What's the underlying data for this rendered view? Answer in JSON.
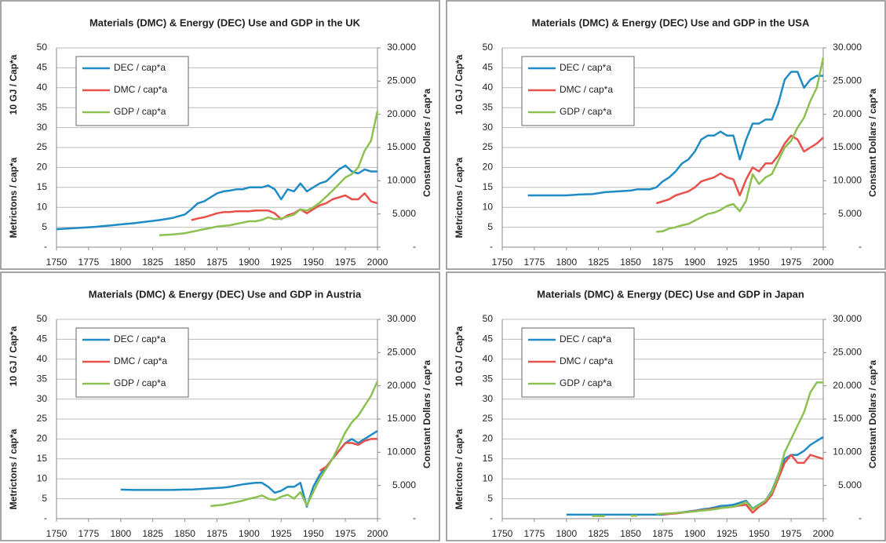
{
  "chart_data": [
    {
      "type": "line",
      "title": "Materials (DMC) & Energy (DEC) Use and GDP in the UK",
      "ylabels": [
        "Metrictons / cap*a",
        "10 GJ / Cap*a"
      ],
      "y2label": "Constant Dollars / cap*a",
      "legend": "top-left",
      "grid": true,
      "xlim": [
        1750,
        2000
      ],
      "xticks": [
        1750,
        1775,
        1800,
        1825,
        1850,
        1875,
        1900,
        1925,
        1950,
        1975,
        2000
      ],
      "ylim": [
        0,
        50
      ],
      "yticks": [
        {
          "value": 0,
          "label": "-"
        },
        5,
        10,
        15,
        20,
        25,
        30,
        35,
        40,
        45,
        50
      ],
      "y2lim": [
        0,
        30000
      ],
      "y2ticks": [
        {
          "value": 0,
          "label": "-"
        },
        {
          "value": 5000,
          "label": "5.000"
        },
        {
          "value": 10000,
          "label": "10.000"
        },
        {
          "value": 15000,
          "label": "15.000"
        },
        {
          "value": 20000,
          "label": "20.000"
        },
        {
          "value": 25000,
          "label": "25.000"
        },
        {
          "value": 30000,
          "label": "30.000"
        }
      ],
      "x": [
        1750,
        1760,
        1770,
        1780,
        1790,
        1800,
        1810,
        1820,
        1830,
        1840,
        1850,
        1855,
        1860,
        1865,
        1870,
        1875,
        1880,
        1885,
        1890,
        1895,
        1900,
        1905,
        1910,
        1915,
        1920,
        1925,
        1930,
        1935,
        1940,
        1945,
        1950,
        1955,
        1960,
        1965,
        1970,
        1975,
        1980,
        1985,
        1990,
        1995,
        2000
      ],
      "series": [
        {
          "name": "DEC / cap*a",
          "color": "#1f8bc4",
          "values": [
            4.5,
            4.7,
            4.9,
            5.1,
            5.4,
            5.7,
            6.0,
            6.4,
            6.8,
            7.3,
            8.2,
            9.5,
            11,
            11.5,
            12.5,
            13.5,
            14,
            14.2,
            14.5,
            14.5,
            15,
            15,
            15,
            15.5,
            14.5,
            12,
            14.5,
            14,
            16,
            14,
            15,
            16,
            16.5,
            18,
            19.5,
            20.5,
            19,
            18.5,
            19.5,
            19,
            19
          ]
        },
        {
          "name": "DMC / cap*a",
          "color": "#e8504a",
          "values": [
            null,
            null,
            null,
            null,
            null,
            null,
            null,
            null,
            null,
            null,
            null,
            6.8,
            7.2,
            7.5,
            8,
            8.5,
            8.8,
            8.8,
            9,
            9,
            9,
            9.2,
            9.2,
            9.2,
            8.5,
            7,
            8,
            8.5,
            9.5,
            8.5,
            9.5,
            10.5,
            11,
            12,
            12.5,
            13,
            12,
            12,
            13.5,
            11.5,
            11
          ]
        },
        {
          "name": "GDP / cap*a",
          "color": "#8cc152",
          "axis": "y2",
          "values": [
            null,
            null,
            null,
            null,
            null,
            null,
            null,
            null,
            1800,
            1900,
            2100,
            2300,
            2500,
            2700,
            2900,
            3100,
            3200,
            3300,
            3500,
            3700,
            3900,
            3900,
            4100,
            4500,
            4200,
            4300,
            4600,
            4900,
            5700,
            5500,
            6000,
            6700,
            7600,
            8500,
            9500,
            10500,
            11000,
            12000,
            14500,
            16000,
            20500
          ]
        }
      ]
    },
    {
      "type": "line",
      "title": "Materials (DMC) & Energy (DEC) Use and GDP in the USA",
      "ylabels": [
        "Metrictons / cap*a",
        "10 GJ / Cap*a"
      ],
      "y2label": "Constant Dollars / cap*a",
      "legend": "top-left",
      "grid": true,
      "xlim": [
        1750,
        2000
      ],
      "xticks": [
        1750,
        1775,
        1800,
        1825,
        1850,
        1875,
        1900,
        1925,
        1950,
        1975,
        2000
      ],
      "ylim": [
        0,
        50
      ],
      "yticks": [
        {
          "value": 0,
          "label": "-"
        },
        5,
        10,
        15,
        20,
        25,
        30,
        35,
        40,
        45,
        50
      ],
      "y2lim": [
        0,
        30000
      ],
      "y2ticks": [
        {
          "value": 0,
          "label": "-"
        },
        {
          "value": 5000,
          "label": "5.000"
        },
        {
          "value": 10000,
          "label": "10.000"
        },
        {
          "value": 15000,
          "label": "15.000"
        },
        {
          "value": 20000,
          "label": "20.000"
        },
        {
          "value": 25000,
          "label": "25.000"
        },
        {
          "value": 30000,
          "label": "30.000"
        }
      ],
      "x": [
        1750,
        1760,
        1770,
        1780,
        1790,
        1800,
        1810,
        1820,
        1830,
        1840,
        1850,
        1855,
        1860,
        1865,
        1870,
        1875,
        1880,
        1885,
        1890,
        1895,
        1900,
        1905,
        1910,
        1915,
        1920,
        1925,
        1930,
        1935,
        1940,
        1945,
        1950,
        1955,
        1960,
        1965,
        1970,
        1975,
        1980,
        1985,
        1990,
        1995,
        2000
      ],
      "series": [
        {
          "name": "DEC / cap*a",
          "color": "#1f8bc4",
          "values": [
            null,
            null,
            13,
            13,
            13,
            13,
            13.2,
            13.3,
            13.8,
            14,
            14.2,
            14.5,
            14.5,
            14.5,
            15,
            16.5,
            17.5,
            19,
            21,
            22,
            24,
            27,
            28,
            28,
            29,
            28,
            28,
            22,
            27,
            31,
            31,
            32,
            32,
            36,
            42,
            44,
            44,
            40,
            42,
            43,
            43
          ]
        },
        {
          "name": "DMC / cap*a",
          "color": "#e8504a",
          "values": [
            null,
            null,
            null,
            null,
            null,
            null,
            null,
            null,
            null,
            null,
            null,
            null,
            null,
            null,
            11,
            11.5,
            12,
            13,
            13.5,
            14,
            15,
            16.5,
            17,
            17.5,
            18.5,
            17.5,
            17,
            13,
            17,
            20,
            19,
            21,
            21,
            23,
            26,
            28,
            27,
            24,
            25,
            26,
            27.5
          ]
        },
        {
          "name": "GDP / cap*a",
          "color": "#8cc152",
          "axis": "y2",
          "values": [
            null,
            null,
            null,
            null,
            null,
            null,
            null,
            null,
            null,
            null,
            null,
            null,
            null,
            null,
            2300,
            2400,
            2800,
            3000,
            3300,
            3500,
            4000,
            4500,
            5000,
            5200,
            5600,
            6200,
            6500,
            5400,
            7000,
            11000,
            9500,
            10500,
            11000,
            13000,
            15000,
            16000,
            18000,
            19500,
            22000,
            24000,
            28500
          ]
        }
      ]
    },
    {
      "type": "line",
      "title": "Materials (DMC) & Energy (DEC) Use and GDP in Austria",
      "ylabels": [
        "Metrictons / cap*a",
        "10 GJ / Cap*a"
      ],
      "y2label": "Constant Dollars / cap*a",
      "legend": "top-left",
      "grid": true,
      "xlim": [
        1750,
        2000
      ],
      "xticks": [
        1750,
        1775,
        1800,
        1825,
        1850,
        1875,
        1900,
        1925,
        1950,
        1975,
        2000
      ],
      "ylim": [
        0,
        50
      ],
      "yticks": [
        {
          "value": 0,
          "label": "-"
        },
        5,
        10,
        15,
        20,
        25,
        30,
        35,
        40,
        45,
        50
      ],
      "y2lim": [
        0,
        30000
      ],
      "y2ticks": [
        {
          "value": 0,
          "label": "-"
        },
        {
          "value": 5000,
          "label": "5.000"
        },
        {
          "value": 10000,
          "label": "10.000"
        },
        {
          "value": 15000,
          "label": "15.000"
        },
        {
          "value": 20000,
          "label": "20.000"
        },
        {
          "value": 25000,
          "label": "25.000"
        },
        {
          "value": 30000,
          "label": "30.000"
        }
      ],
      "x": [
        1750,
        1760,
        1770,
        1780,
        1790,
        1800,
        1810,
        1820,
        1830,
        1840,
        1850,
        1855,
        1860,
        1865,
        1870,
        1875,
        1880,
        1885,
        1890,
        1895,
        1900,
        1905,
        1910,
        1915,
        1920,
        1925,
        1930,
        1935,
        1940,
        1945,
        1950,
        1955,
        1960,
        1965,
        1970,
        1975,
        1980,
        1985,
        1990,
        1995,
        2000
      ],
      "series": [
        {
          "name": "DEC / cap*a",
          "color": "#1f8bc4",
          "values": [
            null,
            null,
            null,
            null,
            null,
            7.3,
            7.2,
            7.2,
            7.2,
            7.2,
            7.3,
            7.3,
            7.4,
            7.5,
            7.6,
            7.7,
            7.8,
            8,
            8.3,
            8.6,
            8.8,
            9,
            9,
            8,
            6.5,
            7,
            8,
            8,
            9,
            3,
            8,
            11,
            13,
            15,
            17,
            19,
            20,
            19,
            20,
            21,
            22
          ]
        },
        {
          "name": "DMC / cap*a",
          "color": "#e8504a",
          "values": [
            null,
            null,
            null,
            null,
            null,
            null,
            null,
            null,
            null,
            null,
            null,
            null,
            null,
            null,
            null,
            null,
            null,
            null,
            null,
            null,
            null,
            null,
            null,
            null,
            null,
            null,
            null,
            null,
            null,
            null,
            null,
            12,
            13,
            15,
            17,
            19,
            19,
            18.5,
            19.5,
            20,
            20
          ]
        },
        {
          "name": "GDP / cap*a",
          "color": "#8cc152",
          "axis": "y2",
          "values": [
            null,
            null,
            null,
            null,
            null,
            null,
            null,
            null,
            null,
            null,
            null,
            null,
            null,
            null,
            1900,
            2000,
            2100,
            2300,
            2500,
            2700,
            3000,
            3200,
            3500,
            3000,
            2800,
            3300,
            3600,
            3000,
            4000,
            2000,
            4000,
            6000,
            7500,
            9000,
            11000,
            13000,
            14500,
            15500,
            17000,
            18500,
            20700
          ]
        }
      ]
    },
    {
      "type": "line",
      "title": "Materials (DMC) & Energy (DEC) Use and GDP in Japan",
      "ylabels": [
        "Metrictons / cap*a",
        "10 GJ / Cap*a"
      ],
      "y2label": "Constant Dollars / cap*a",
      "legend": "top-left",
      "grid": true,
      "xlim": [
        1750,
        2000
      ],
      "xticks": [
        1750,
        1775,
        1800,
        1825,
        1850,
        1875,
        1900,
        1925,
        1950,
        1975,
        2000
      ],
      "ylim": [
        0,
        50
      ],
      "yticks": [
        {
          "value": 0,
          "label": "-"
        },
        5,
        10,
        15,
        20,
        25,
        30,
        35,
        40,
        45,
        50
      ],
      "y2lim": [
        0,
        30000
      ],
      "y2ticks": [
        {
          "value": 0,
          "label": "-"
        },
        {
          "value": 5000,
          "label": "5.000"
        },
        {
          "value": 10000,
          "label": "10.000"
        },
        {
          "value": 15000,
          "label": "15.000"
        },
        {
          "value": 20000,
          "label": "20.000"
        },
        {
          "value": 25000,
          "label": "25.000"
        },
        {
          "value": 30000,
          "label": "30.000"
        }
      ],
      "x": [
        1750,
        1760,
        1770,
        1780,
        1790,
        1800,
        1810,
        1820,
        1830,
        1840,
        1850,
        1855,
        1860,
        1865,
        1870,
        1875,
        1880,
        1885,
        1890,
        1895,
        1900,
        1905,
        1910,
        1915,
        1920,
        1925,
        1930,
        1935,
        1940,
        1945,
        1950,
        1955,
        1960,
        1965,
        1970,
        1975,
        1980,
        1985,
        1990,
        1995,
        2000
      ],
      "series": [
        {
          "name": "DEC / cap*a",
          "color": "#1f8bc4",
          "values": [
            null,
            null,
            null,
            null,
            null,
            1,
            1,
            1,
            1,
            1,
            1,
            1,
            1,
            1,
            1,
            1,
            1.2,
            1.4,
            1.6,
            1.8,
            2,
            2.3,
            2.5,
            2.8,
            3.2,
            3.3,
            3.5,
            4,
            4.5,
            2.5,
            3.5,
            4.5,
            7,
            11,
            15,
            16,
            16,
            17,
            18.5,
            19.5,
            20.5
          ]
        },
        {
          "name": "DMC / cap*a",
          "color": "#e8504a",
          "values": [
            null,
            null,
            null,
            null,
            null,
            null,
            null,
            null,
            null,
            null,
            null,
            null,
            null,
            null,
            null,
            1,
            1.2,
            1.3,
            1.5,
            1.7,
            1.9,
            2.1,
            2.3,
            2.5,
            2.7,
            2.8,
            3,
            3.3,
            3.5,
            1.5,
            3,
            4,
            6,
            10,
            14,
            16,
            14,
            14,
            16,
            15.5,
            15
          ]
        },
        {
          "name": "GDP / cap*a",
          "color": "#8cc152",
          "axis": "y2",
          "values": [
            null,
            null,
            null,
            null,
            null,
            null,
            null,
            400,
            400,
            null,
            450,
            450,
            null,
            null,
            700,
            750,
            800,
            850,
            950,
            1000,
            1100,
            1200,
            1300,
            1400,
            1600,
            1700,
            1800,
            2100,
            2500,
            1400,
            2000,
            2700,
            4000,
            6500,
            10000,
            12000,
            14000,
            16000,
            19000,
            20500,
            20500
          ]
        }
      ]
    }
  ]
}
